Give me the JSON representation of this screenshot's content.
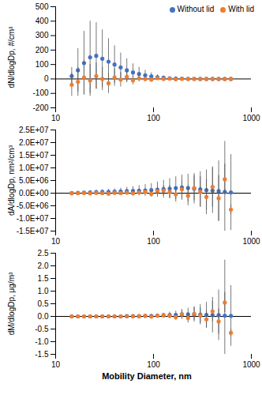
{
  "chart_data": [
    {
      "type": "scatter",
      "ylabel": "dN/dlogDp, #/cm³",
      "log": "x",
      "legend": "top-right",
      "marker": "circle",
      "x": [
        14.6,
        16.9,
        19.5,
        22.5,
        26.0,
        30.0,
        34.7,
        40.0,
        46.2,
        53.4,
        61.7,
        71.2,
        82.3,
        95.0,
        109.7,
        126.7,
        146.4,
        169.0,
        195.2,
        225.5,
        260.4,
        300.8,
        347.4,
        401.2,
        463.4,
        535.2,
        618.2
      ],
      "xlim": [
        10,
        1000
      ],
      "xticks": [
        10,
        100,
        1000
      ],
      "ylim": [
        -200,
        500
      ],
      "yticks": [
        -200,
        -100,
        0,
        100,
        200,
        300,
        400,
        500
      ],
      "series": [
        {
          "name": "Without lid",
          "color": "#4472c4",
          "values": [
            20,
            60,
            110,
            150,
            160,
            140,
            120,
            100,
            80,
            60,
            45,
            35,
            25,
            18,
            12,
            8,
            5,
            3,
            2,
            1,
            1,
            0,
            0,
            0,
            0,
            0,
            0
          ],
          "errors": [
            60,
            150,
            220,
            250,
            230,
            200,
            160,
            130,
            100,
            80,
            60,
            45,
            35,
            25,
            18,
            12,
            8,
            6,
            4,
            3,
            2,
            2,
            1,
            1,
            1,
            1,
            1
          ]
        },
        {
          "name": "With lid",
          "color": "#ed7d31",
          "values": [
            -40,
            -20,
            10,
            -10,
            20,
            0,
            -30,
            10,
            -5,
            15,
            -10,
            5,
            0,
            -5,
            5,
            0,
            2,
            -2,
            1,
            0,
            0,
            0,
            0,
            0,
            0,
            0,
            0
          ],
          "errors": [
            80,
            100,
            120,
            110,
            90,
            80,
            70,
            60,
            50,
            40,
            30,
            25,
            20,
            15,
            10,
            8,
            6,
            4,
            3,
            2,
            2,
            1,
            1,
            1,
            1,
            1,
            1
          ]
        }
      ]
    },
    {
      "type": "scatter",
      "ylabel": "dA/dlogDp, nm²/cm³",
      "log": "x",
      "marker": "circle",
      "x": [
        14.6,
        16.9,
        19.5,
        22.5,
        26.0,
        30.0,
        34.7,
        40.0,
        46.2,
        53.4,
        61.7,
        71.2,
        82.3,
        95.0,
        109.7,
        126.7,
        146.4,
        169.0,
        195.2,
        225.5,
        260.4,
        300.8,
        347.4,
        401.2,
        463.4,
        535.2,
        618.2
      ],
      "xlim": [
        10,
        1000
      ],
      "xticks": [
        10,
        100,
        1000
      ],
      "ylim": [
        -15000000,
        25000000
      ],
      "yticks": [
        {
          "value": -15000000,
          "label": "-1.5E+07"
        },
        {
          "value": -10000000,
          "label": "-1.0E+07"
        },
        {
          "value": -5000000,
          "label": "-5.0E+06"
        },
        {
          "value": 0,
          "label": "0.0E+00"
        },
        {
          "value": 5000000,
          "label": "5.0E+06"
        },
        {
          "value": 10000000,
          "label": "1.0E+07"
        },
        {
          "value": 15000000,
          "label": "1.5E+07"
        },
        {
          "value": 20000000,
          "label": "2.0E+07"
        },
        {
          "value": 25000000,
          "label": "2.5E+07"
        }
      ],
      "series": [
        {
          "name": "Without lid",
          "color": "#4472c4",
          "values": [
            50000,
            100000,
            200000,
            300000,
            400000,
            500000,
            500000,
            600000,
            700000,
            800000,
            900000,
            1000000,
            1100000,
            1200000,
            1400000,
            1600000,
            1800000,
            2000000,
            2200000,
            2000000,
            1800000,
            1500000,
            1200000,
            1000000,
            800000,
            500000,
            300000
          ],
          "errors": [
            100000,
            300000,
            500000,
            700000,
            800000,
            900000,
            1000000,
            1100000,
            1300000,
            1500000,
            1700000,
            2000000,
            2300000,
            2600000,
            3000000,
            3500000,
            4000000,
            4500000,
            5000000,
            5500000,
            6000000,
            7000000,
            8000000,
            9000000,
            12000000,
            20000000,
            15000000
          ]
        },
        {
          "name": "With lid",
          "color": "#ed7d31",
          "values": [
            -50000,
            0,
            50000,
            -100000,
            100000,
            0,
            -200000,
            100000,
            0,
            200000,
            -100000,
            300000,
            500000,
            -300000,
            800000,
            1000000,
            500000,
            -500000,
            1500000,
            -1000000,
            2000000,
            500000,
            -1500000,
            2500000,
            -2000000,
            5500000,
            -6500000
          ],
          "errors": [
            100000,
            200000,
            300000,
            300000,
            400000,
            400000,
            500000,
            500000,
            600000,
            700000,
            800000,
            900000,
            1000000,
            1200000,
            1500000,
            2000000,
            2500000,
            3000000,
            3500000,
            4000000,
            5000000,
            6000000,
            7000000,
            8000000,
            9000000,
            6000000,
            2000000
          ]
        }
      ]
    },
    {
      "type": "scatter",
      "ylabel": "dM/dlogDp, μg/m³",
      "xlabel": "Mobility Diameter, nm",
      "log": "x",
      "marker": "circle",
      "x": [
        14.6,
        16.9,
        19.5,
        22.5,
        26.0,
        30.0,
        34.7,
        40.0,
        46.2,
        53.4,
        61.7,
        71.2,
        82.3,
        95.0,
        109.7,
        126.7,
        146.4,
        169.0,
        195.2,
        225.5,
        260.4,
        300.8,
        347.4,
        401.2,
        463.4,
        535.2,
        618.2
      ],
      "xlim": [
        10,
        1000
      ],
      "xticks": [
        10,
        100,
        1000
      ],
      "ylim": [
        -1.5,
        2.5
      ],
      "yticks": [
        -1.5,
        {
          "value": -1,
          "label": "-1.0"
        },
        -0.5,
        {
          "value": 0,
          "label": "0.0"
        },
        0.5,
        {
          "value": 1,
          "label": "1.0"
        },
        1.5,
        {
          "value": 2,
          "label": "2.0"
        },
        2.5
      ],
      "series": [
        {
          "name": "Without lid",
          "color": "#4472c4",
          "values": [
            0,
            0,
            0,
            0,
            0,
            0,
            0,
            0,
            0,
            0.01,
            0.01,
            0.01,
            0.02,
            0.02,
            0.03,
            0.04,
            0.05,
            0.06,
            0.08,
            0.08,
            0.08,
            0.07,
            0.06,
            0.05,
            0.05,
            0.03,
            0.02
          ],
          "errors": [
            0,
            0,
            0,
            0,
            0,
            0.01,
            0.01,
            0.01,
            0.01,
            0.02,
            0.02,
            0.03,
            0.04,
            0.05,
            0.07,
            0.09,
            0.12,
            0.15,
            0.2,
            0.25,
            0.3,
            0.4,
            0.5,
            0.7,
            1.0,
            2.2,
            1.2
          ]
        },
        {
          "name": "With lid",
          "color": "#ed7d31",
          "values": [
            0,
            0,
            0,
            0,
            0,
            0,
            0,
            0,
            0,
            0,
            0,
            0.01,
            0.02,
            -0.01,
            0.03,
            0.04,
            0.02,
            -0.03,
            0.08,
            -0.06,
            0.1,
            0.03,
            -0.12,
            0.2,
            -0.2,
            0.55,
            -0.65
          ],
          "errors": [
            0,
            0,
            0,
            0,
            0,
            0,
            0.01,
            0.01,
            0.01,
            0.01,
            0.02,
            0.02,
            0.03,
            0.04,
            0.05,
            0.07,
            0.1,
            0.12,
            0.15,
            0.2,
            0.25,
            0.3,
            0.35,
            0.4,
            0.5,
            0.4,
            0.15
          ]
        }
      ]
    }
  ]
}
